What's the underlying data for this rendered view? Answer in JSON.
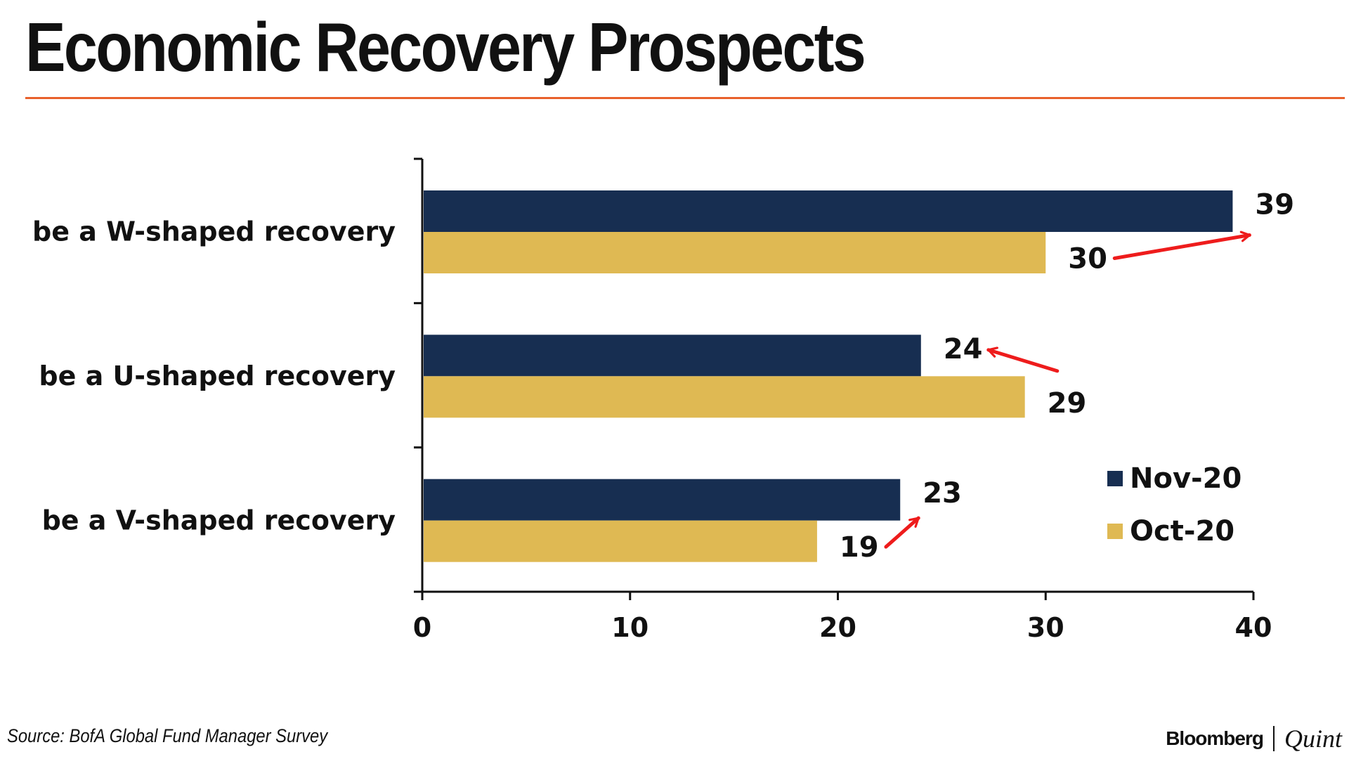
{
  "title": "Economic Recovery Prospects",
  "source": "Source: BofA Global Fund Manager Survey",
  "brand": {
    "part1": "Bloomberg",
    "part2": "Quint"
  },
  "colors": {
    "title_rule": "#e8612c",
    "arrow": "#ee1c1c"
  },
  "chart_data": {
    "type": "bar",
    "orientation": "horizontal",
    "title": "Economic Recovery Prospects",
    "xlabel": "",
    "ylabel": "",
    "categories": [
      "be a W-shaped recovery",
      "be a U-shaped recovery",
      "be a V-shaped recovery"
    ],
    "series": [
      {
        "name": "Nov-20",
        "color": "#172e51",
        "values": [
          39,
          24,
          23
        ]
      },
      {
        "name": "Oct-20",
        "color": "#dfb953",
        "values": [
          30,
          29,
          19
        ]
      }
    ],
    "xlim": [
      0,
      40
    ],
    "xticks": [
      0,
      10,
      20,
      30,
      40
    ],
    "grid": false,
    "legend_position": "bottom-right",
    "annotations": [
      {
        "category": "be a W-shaped recovery",
        "type": "arrow",
        "from_series": "Oct-20",
        "to_series": "Nov-20"
      },
      {
        "category": "be a U-shaped recovery",
        "type": "arrow",
        "from_series": "Oct-20",
        "to_series": "Nov-20"
      },
      {
        "category": "be a V-shaped recovery",
        "type": "arrow",
        "from_series": "Oct-20",
        "to_series": "Nov-20"
      }
    ]
  }
}
